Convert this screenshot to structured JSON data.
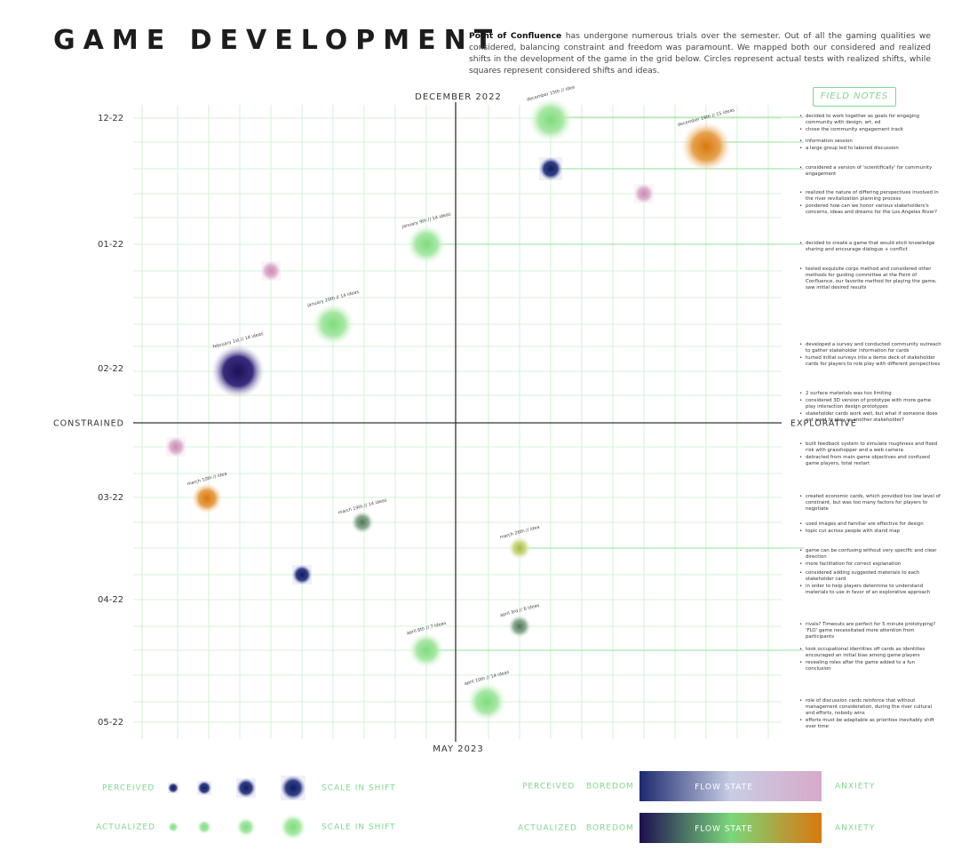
{
  "header": {
    "title": "GAME DEVELOPMENT",
    "intro_bold": "Point of Confluence",
    "intro": "has undergone numerous trials over the semester. Out of all the gaming qualities we considered, balancing constraint and freedom was paramount. We mapped both our considered and realized shifts in the development of the game in the grid below. Circles represent actual tests with realized shifts, while squares represent considered shifts and ideas."
  },
  "axes": {
    "top": "DECEMBER 2022",
    "bottom": "MAY 2023",
    "left": "CONSTRAINED",
    "right": "EXPLORATIVE",
    "rows": [
      "12-22",
      "01-22",
      "02-22",
      "03-22",
      "04-22",
      "05-22"
    ]
  },
  "marker_labels": [
    "december 15th // idea",
    "december 19th // 15 ideas",
    "january 9th // 14 ideas",
    "january 20th // 14 ideas",
    "february 1st // 14 ideas",
    "march 10th // idea",
    "march 19th // 14 ideas",
    "march 26th // idea",
    "april 3rd // 6 ideas",
    "april 6th // 7 ideas",
    "april 10th // 14 ideas"
  ],
  "field_notes": {
    "title": "FIELD NOTES",
    "groups": [
      [
        "decided to work together as goals for engaging community with design, art, ed",
        "chose the community engagement track"
      ],
      [
        "information session",
        "a large group led to labored discussion"
      ],
      [
        "considered a version of 'scientifically' for community engagement"
      ],
      [
        "realized the nature of differing perspectives involved in the river revitalization planning process",
        "pondered how can we honor various stakeholders's concerns, ideas and dreams for the Los Angeles River?"
      ],
      [
        "decided to create a game that would elicit knowledge sharing and encourage dialogue + conflict"
      ],
      [
        "tested exquisite corps method and considered other methods for guiding committee at the Point of Confluence, our favorite method for playing the game, saw initial desired results"
      ],
      [
        "developed a survey and conducted community outreach to gather stakeholder information for cards",
        "turned initial surveys into a demo deck of stakeholder cards for players to role play with different perspectives"
      ],
      [
        "2 surface materials was too limiting",
        "considered 3D version of prototype with more game play interaction design prototypes",
        "stakeholder cards work well, but what if someone does not want to play as another stakeholder?"
      ],
      [
        "built feedback system to simulate roughness and fixed risk with grasshopper and a web camera",
        "detracted from main game objectives and confused game players, total restart"
      ],
      [
        "created economic cards, which provided too low level of constraint, but was too many factors for players to negotiate"
      ],
      [
        "used images and familiar are effective for design",
        "topic cut across people with stand map"
      ],
      [
        "game can be confusing without very specific and clear direction",
        "more facilitation for correct explanation"
      ],
      [
        "considered adding suggested materials to each stakeholder card",
        "in order to help players determine to understand materials to use in favor of an explorative approach"
      ],
      [
        "rivals? Timeouts are perfect for 5 minute prototyping? 'FLO' game necessitated more attention from participants"
      ],
      [
        "took occupational identities off cards as identities encouraged an initial bias among game players",
        "revealing roles after the game added to a fun conclusion"
      ],
      [
        "role of discussion cards reinforce that without management consideration, during the river cultural and efforts, nobody wins",
        "efforts must be adaptable as priorities inevitably shift over time"
      ]
    ]
  },
  "legend": {
    "perceived": "PERCEIVED",
    "actualized": "ACTUALIZED",
    "scale": "SCALE IN SHIFT",
    "boredom": "BOREDOM",
    "flow": "FLOW STATE",
    "anxiety": "ANXIETY"
  }
}
